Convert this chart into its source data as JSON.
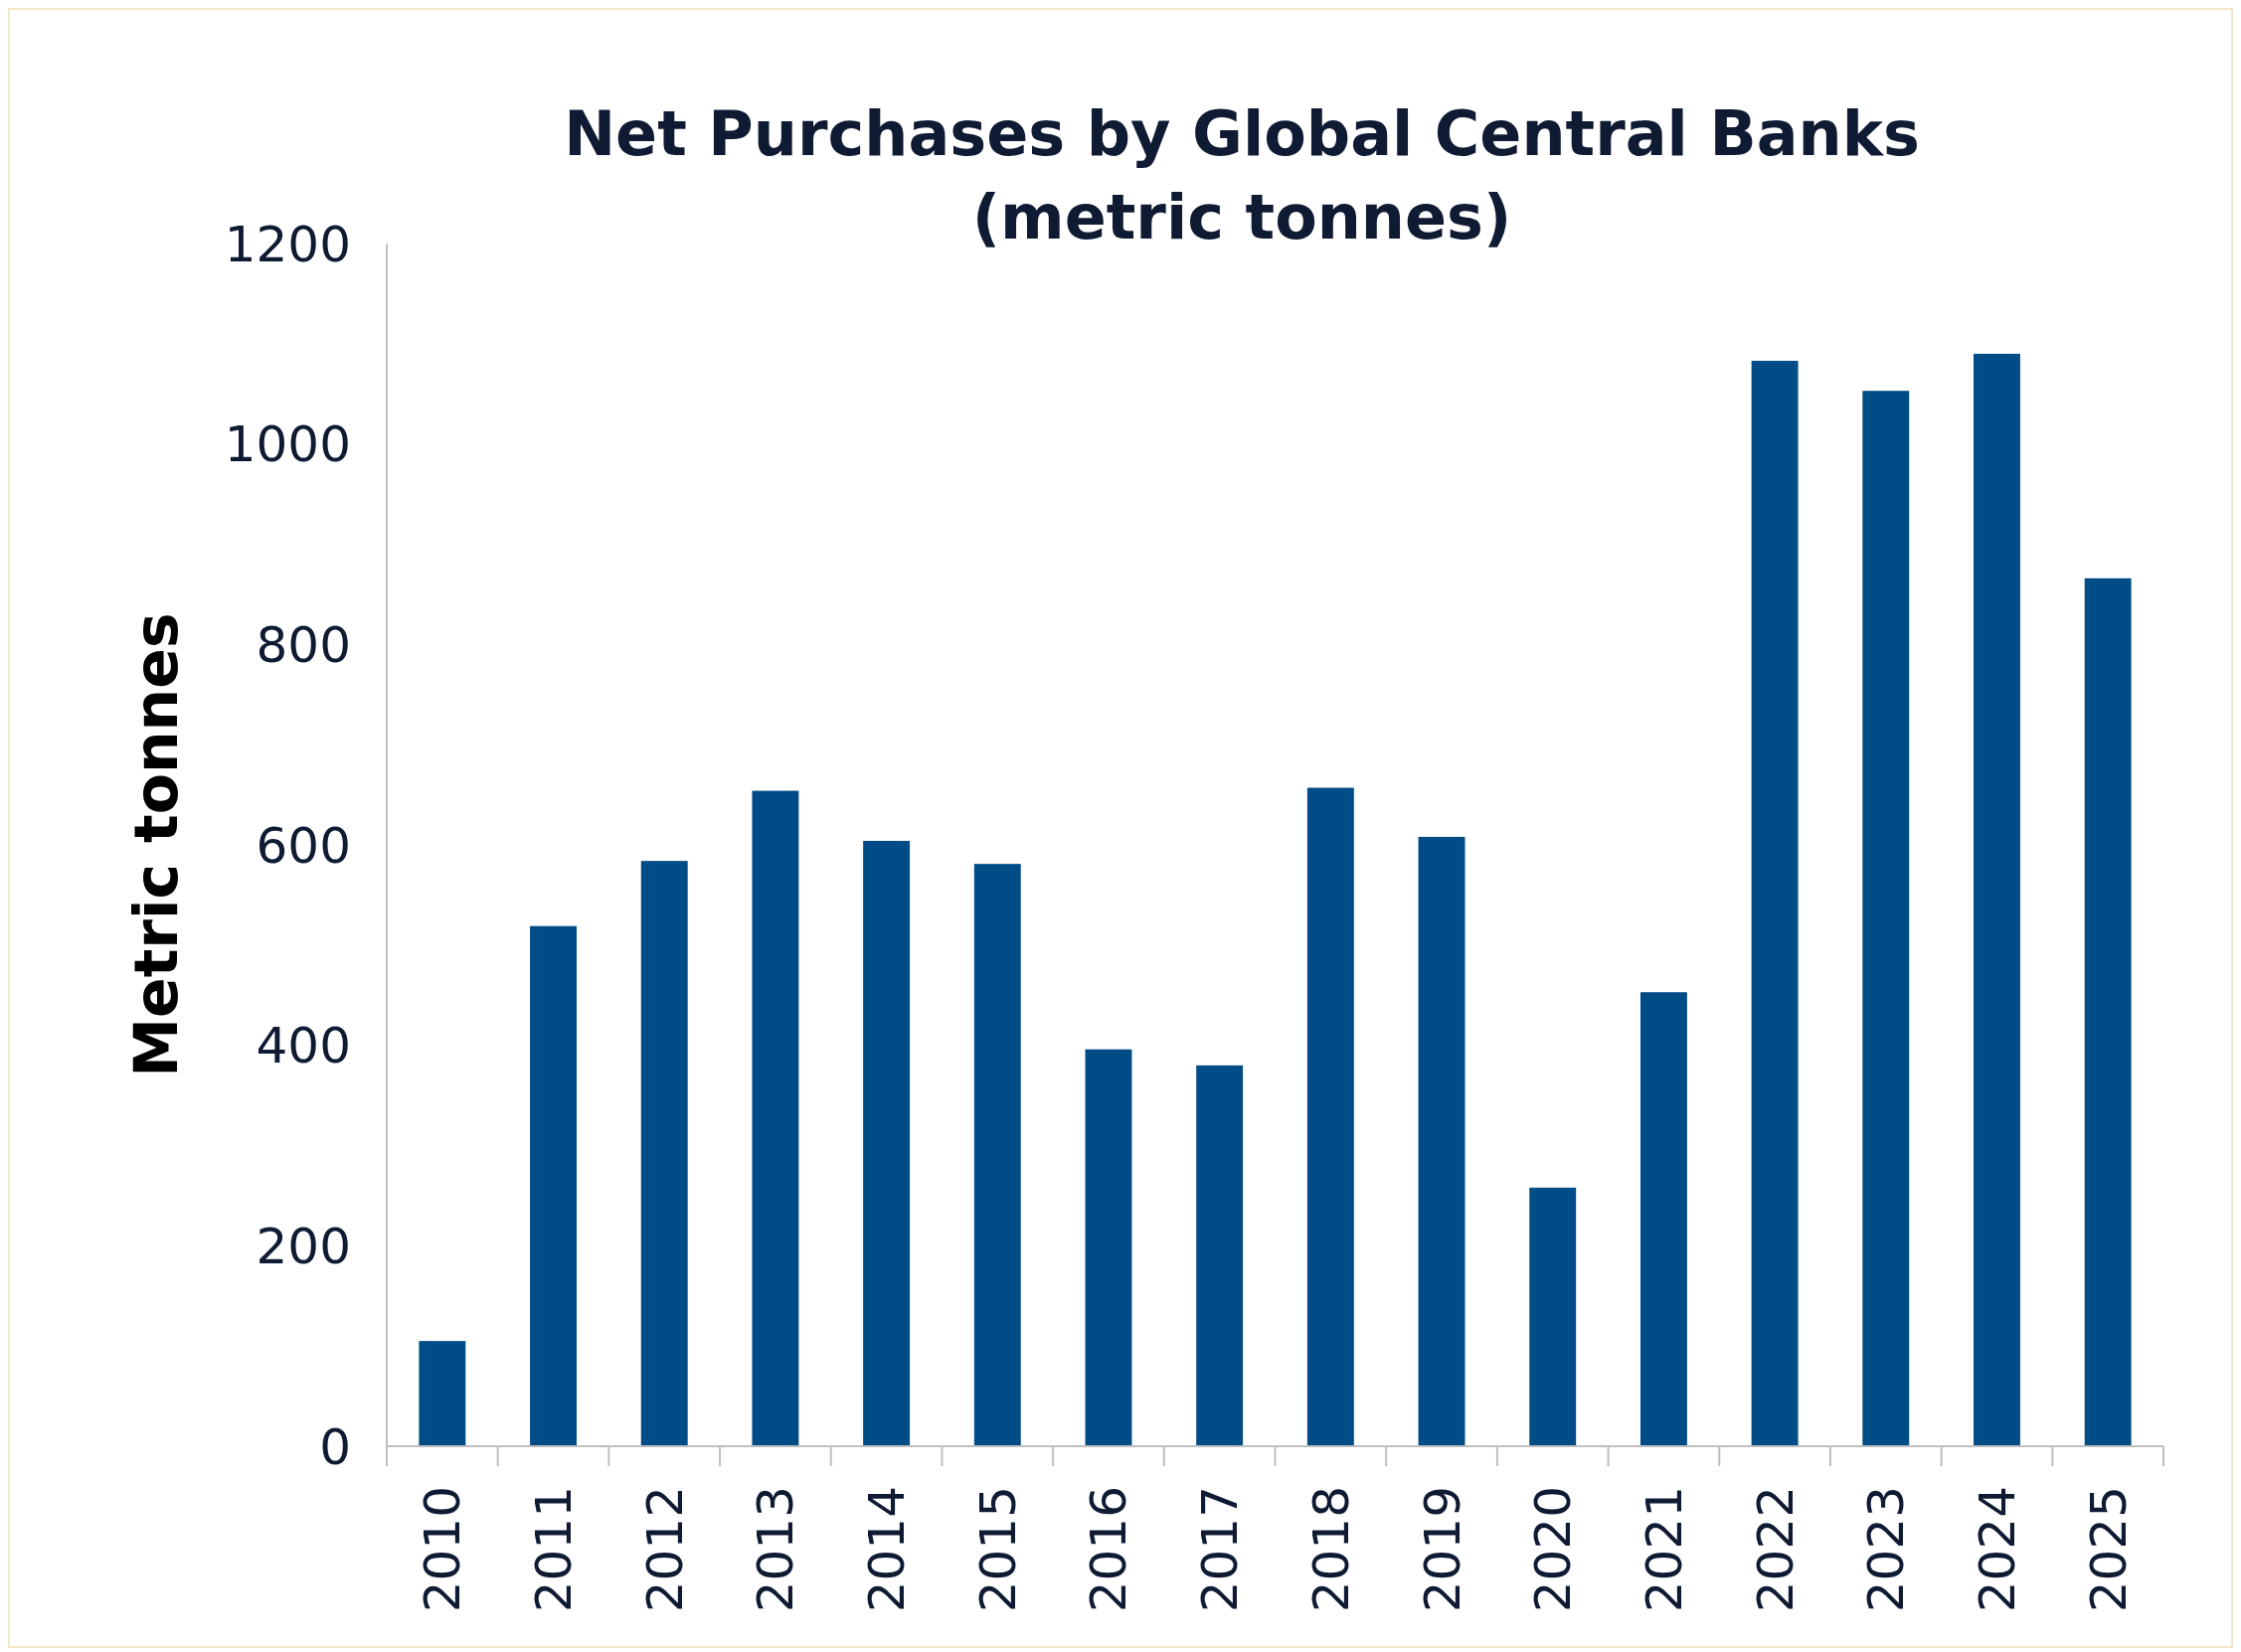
{
  "chart_data": {
    "type": "bar",
    "title": "Net Purchases by Global Central Banks",
    "subtitle": "(metric tonnes)",
    "ylabel": "Metric tonnes",
    "categories": [
      "2010",
      "2011",
      "2012",
      "2013",
      "2014",
      "2015",
      "2016",
      "2017",
      "2018",
      "2019",
      "2020",
      "2021",
      "2022",
      "2023",
      "2024",
      "2025"
    ],
    "values": [
      105,
      519,
      584,
      654,
      604,
      581,
      396,
      380,
      657,
      608,
      258,
      453,
      1083,
      1053,
      1090,
      866
    ],
    "color": "#004c86",
    "ylim": [
      0,
      1200
    ],
    "yticks": [
      0,
      200,
      400,
      600,
      800,
      1000,
      1200
    ],
    "grid": false
  }
}
